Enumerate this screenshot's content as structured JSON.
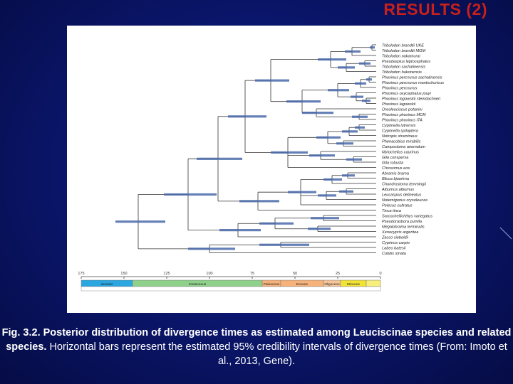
{
  "slide": {
    "title": "RESULTS (2)"
  },
  "figure": {
    "taxa": [
      "Tribolodon brandtii UKE",
      "Tribolodon brandtii MGM",
      "Tribolodon nakamurai",
      "Pseudaspius leptocephalus",
      "Tribolodon sachalinensis",
      "Tribolodon hakonensis",
      "Phoxinus percnurus sachalinensis",
      "Phoxinus percnurus mantschuricus",
      "Phoxinus percnurus",
      "Phoxinus oxycephalus jouyi",
      "Phoxinus lagowskii steindachneri",
      "Phoxinus lagowskii",
      "Oreoleuciscus potanini",
      "Phoxinus phoxinus MON",
      "Phoxinus phoxinus ITA",
      "Cyprinella lutrensis",
      "Cyprinella spiloptera",
      "Notropis stramineus",
      "Phenacobius mirabilis",
      "Campostoma anomalum",
      "Mylocheilus caurinus",
      "Gila conspersa",
      "Gila robusta",
      "Chrosomus eos",
      "Abramis brama",
      "Blicca bjoerkna",
      "Chondrostoma lemmingii",
      "Alburnus alburnus",
      "Leucaspius delineatus",
      "Notemigonus crysoleucas",
      "Pelecus cultratus",
      "Tinca tinca",
      "Sarcocheilichthys variegatus",
      "Pseudorasbora pumila",
      "Megalobrama terminalis",
      "Xenocypris argentea",
      "Zacco sieboldii",
      "Cyprinus carpio",
      "Labeo batesii",
      "Cobitis striata"
    ],
    "axis_ticks": [
      "175",
      "150",
      "125",
      "100",
      "75",
      "50",
      "25",
      "0"
    ],
    "periods": [
      {
        "label": "Jurassic",
        "color": "#2aa7e0"
      },
      {
        "label": "Cretaceous",
        "color": "#8fd18a"
      },
      {
        "label": "Paleocene",
        "color": "#f6b27a"
      },
      {
        "label": "Eocene",
        "color": "#f6b27a"
      },
      {
        "label": "Oligocene",
        "color": "#f7c79a"
      },
      {
        "label": "Miocene",
        "color": "#f2e437"
      }
    ],
    "colors": {
      "tree_lines": "#333333",
      "hpd_bars": "#4a6bab",
      "timescale_border": "#777777"
    }
  },
  "caption": {
    "bold_part": "Fig. 3.2. Posterior distribution of divergence times as estimated among Leuciscinae species and related species.",
    "normal_part": "Horizontal bars represent the estimated 95% credibility intervals of divergence times (From: Imoto et al., 2013, Gene)."
  },
  "colors": {
    "background": "#0b1770",
    "title": "#c8201a",
    "caption_text": "#ffffff"
  }
}
